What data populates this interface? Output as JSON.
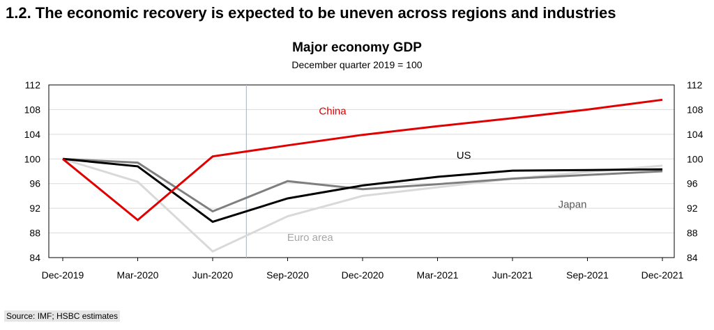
{
  "page": {
    "title": "1.2. The economic recovery is expected to be uneven across regions and industries",
    "source": "Source: IMF; HSBC estimates"
  },
  "chart_data": {
    "type": "line",
    "title": "Major economy GDP",
    "subtitle": "December quarter 2019 = 100",
    "xlabel": "",
    "ylabel": "",
    "categories": [
      "Dec-2019",
      "Mar-2020",
      "Jun-2020",
      "Sep-2020",
      "Dec-2020",
      "Mar-2021",
      "Jun-2021",
      "Sep-2021",
      "Dec-2021"
    ],
    "ylim": [
      84,
      112
    ],
    "yticks": [
      84,
      88,
      92,
      96,
      100,
      104,
      108,
      112
    ],
    "dual_y_axis": true,
    "grid": "horizontal",
    "forecast_marker_between": [
      "Jun-2020",
      "Sep-2020"
    ],
    "series": [
      {
        "name": "Euro area",
        "color": "#d9d9d9",
        "label_color": "#a6a6a6",
        "values": [
          100,
          96.3,
          85.0,
          90.7,
          94.0,
          95.4,
          96.8,
          97.9,
          98.9
        ]
      },
      {
        "name": "Japan",
        "color": "#7f7f7f",
        "label_color": "#595959",
        "values": [
          100,
          99.4,
          91.5,
          96.4,
          95.1,
          95.9,
          96.8,
          97.4,
          98.0
        ]
      },
      {
        "name": "US",
        "color": "#000000",
        "label_color": "#000000",
        "values": [
          100,
          98.8,
          89.8,
          93.6,
          95.7,
          97.1,
          98.1,
          98.2,
          98.3
        ]
      },
      {
        "name": "China",
        "color": "#e00000",
        "label_color": "#e00000",
        "values": [
          100,
          90.1,
          100.4,
          102.2,
          103.9,
          105.3,
          106.6,
          108.0,
          109.6
        ]
      }
    ]
  }
}
